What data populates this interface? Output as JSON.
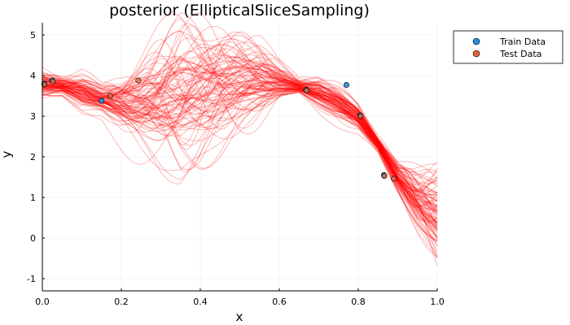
{
  "chart_data": {
    "type": "line",
    "title": "posterior (EllipticalSliceSampling)",
    "xlabel": "x",
    "ylabel": "y",
    "xlim": [
      0.0,
      1.0
    ],
    "ylim": [
      -1.3,
      5.3
    ],
    "xticks": [
      0.0,
      0.2,
      0.4,
      0.6,
      0.8,
      1.0
    ],
    "xtick_labels": [
      "0.0",
      "0.2",
      "0.4",
      "0.6",
      "0.8",
      "1.0"
    ],
    "yticks": [
      -1,
      0,
      1,
      2,
      3,
      4,
      5
    ],
    "ytick_labels": [
      "-1",
      "0",
      "1",
      "2",
      "3",
      "4",
      "5"
    ],
    "grid": true,
    "legend_position": "outer-top-right",
    "sample_color": "#ff0000",
    "posterior_samples": {
      "count": 100,
      "mean_curve": {
        "x": [
          0.0,
          0.05,
          0.1,
          0.15,
          0.2,
          0.25,
          0.3,
          0.35,
          0.4,
          0.45,
          0.5,
          0.55,
          0.6,
          0.65,
          0.7,
          0.75,
          0.8,
          0.85,
          0.9,
          0.95,
          1.0
        ],
        "y": [
          3.78,
          3.72,
          3.55,
          3.4,
          3.3,
          3.3,
          3.35,
          3.45,
          3.6,
          3.73,
          3.8,
          3.82,
          3.8,
          3.72,
          3.55,
          3.3,
          2.95,
          2.3,
          1.5,
          0.95,
          0.55
        ]
      },
      "spread_curve": {
        "x": [
          0.0,
          0.05,
          0.1,
          0.15,
          0.2,
          0.25,
          0.3,
          0.35,
          0.4,
          0.45,
          0.5,
          0.55,
          0.6,
          0.65,
          0.7,
          0.75,
          0.8,
          0.85,
          0.9,
          0.95,
          1.0
        ],
        "y": [
          0.18,
          0.12,
          0.22,
          0.18,
          0.35,
          0.55,
          0.75,
          0.9,
          0.85,
          0.75,
          0.6,
          0.45,
          0.25,
          0.1,
          0.2,
          0.2,
          0.15,
          0.1,
          0.22,
          0.45,
          0.65
        ]
      }
    },
    "series": [
      {
        "name": "Train Data",
        "type": "scatter",
        "color": "#1e8fe6",
        "points": [
          {
            "x": 0.005,
            "y": 3.8
          },
          {
            "x": 0.025,
            "y": 3.88
          },
          {
            "x": 0.15,
            "y": 3.38
          },
          {
            "x": 0.668,
            "y": 3.65
          },
          {
            "x": 0.77,
            "y": 3.77
          },
          {
            "x": 0.805,
            "y": 3.02
          },
          {
            "x": 0.865,
            "y": 1.55
          }
        ]
      },
      {
        "name": "Test Data",
        "type": "scatter",
        "color": "#e3643b",
        "points": [
          {
            "x": 0.005,
            "y": 3.78
          },
          {
            "x": 0.027,
            "y": 3.85
          },
          {
            "x": 0.172,
            "y": 3.5
          },
          {
            "x": 0.243,
            "y": 3.88
          },
          {
            "x": 0.669,
            "y": 3.63
          },
          {
            "x": 0.806,
            "y": 3.0
          },
          {
            "x": 0.866,
            "y": 1.53
          },
          {
            "x": 0.89,
            "y": 1.46
          }
        ]
      }
    ]
  }
}
